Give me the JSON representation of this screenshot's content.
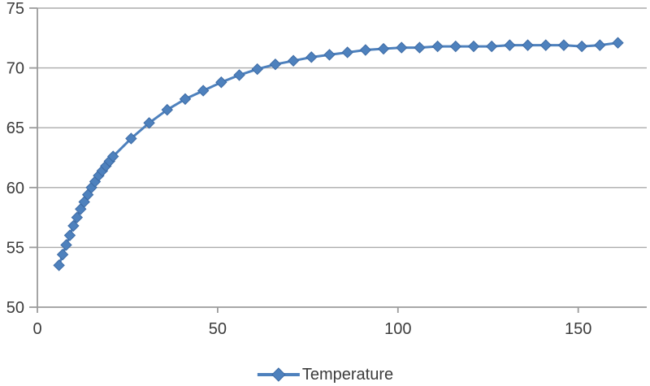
{
  "chart_data": {
    "type": "line",
    "title": "",
    "xlabel": "",
    "ylabel": "",
    "series": [
      {
        "name": "Temperature",
        "x": [
          6,
          7,
          8,
          9,
          10,
          11,
          12,
          13,
          14,
          15,
          16,
          17,
          18,
          19,
          20,
          21,
          26,
          31,
          36,
          41,
          46,
          51,
          56,
          61,
          66,
          71,
          76,
          81,
          86,
          91,
          96,
          101,
          106,
          111,
          116,
          121,
          126,
          131,
          136,
          141,
          146,
          151,
          156,
          161
        ],
        "y": [
          53.5,
          54.4,
          55.2,
          56.0,
          56.8,
          57.5,
          58.2,
          58.8,
          59.4,
          60.0,
          60.5,
          61.0,
          61.4,
          61.8,
          62.2,
          62.6,
          64.1,
          65.4,
          66.5,
          67.4,
          68.1,
          68.8,
          69.4,
          69.9,
          70.3,
          70.6,
          70.9,
          71.1,
          71.3,
          71.5,
          71.6,
          71.7,
          71.7,
          71.8,
          71.8,
          71.8,
          71.8,
          71.9,
          71.9,
          71.9,
          71.9,
          71.8,
          71.9,
          72.1
        ]
      }
    ],
    "xlim": [
      0,
      169
    ],
    "ylim": [
      50,
      75
    ],
    "xticks": [
      0,
      50,
      100,
      150
    ],
    "yticks": [
      50,
      55,
      60,
      65,
      70,
      75
    ],
    "grid": "horizontal",
    "legend_position": "bottom-center",
    "marker": "diamond",
    "colors": {
      "series": "#4e81bd",
      "series_edge": "#3d6ba5",
      "gridline": "#acacac",
      "axis": "#9b9b9b",
      "label_text": "#3c3c3c"
    }
  }
}
